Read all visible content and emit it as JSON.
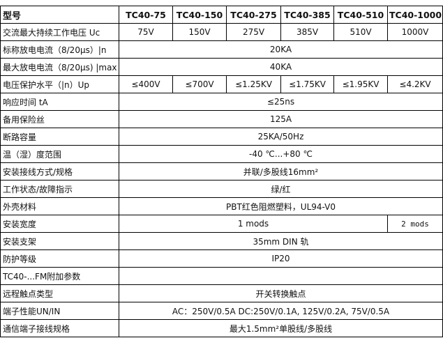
{
  "table": {
    "header": {
      "label": "型号",
      "models": [
        "TC40-75",
        "TC40-150",
        "TC40-275",
        "TC40-385",
        "TC40-510",
        "TC40-1000"
      ]
    },
    "rows": [
      {
        "label": "交流最大持续工作电压  Uc",
        "cells": [
          "75V",
          "150V",
          "275V",
          "385V",
          "510V",
          "1000V"
        ]
      },
      {
        "label": "标称放电电流（8/20μs）|n",
        "cells": [
          "20KA"
        ]
      },
      {
        "label": "最大放电电流（8/20μs) |max",
        "cells": [
          "40KA"
        ]
      },
      {
        "label": "电压保护水平（|n）Up",
        "cells": [
          "≤400V",
          "≤700V",
          "≤1.25KV",
          "≤1.75KV",
          "≤1.95KV",
          "≤4.2KV"
        ]
      },
      {
        "label": "响应时间  tA",
        "cells": [
          "≤25ns"
        ]
      },
      {
        "label": "备用保险丝",
        "cells": [
          "125A"
        ]
      },
      {
        "label": "断路容量",
        "cells": [
          "25KA/50Hz"
        ]
      },
      {
        "label": "温（湿）度范围",
        "cells": [
          "-40 ℃...+80 ℃"
        ]
      },
      {
        "label": "安装接线方式/规格",
        "cells": [
          "并联/多股线16mm²"
        ]
      },
      {
        "label": "工作状态/故障指示",
        "cells": [
          "绿/红"
        ]
      },
      {
        "label": "外壳材料",
        "cells": [
          "PBT红色阻燃塑料，UL94-V0"
        ]
      },
      {
        "label": "安装宽度",
        "cells": [
          "1 mods",
          "2 mods"
        ]
      },
      {
        "label": "安装支架",
        "cells": [
          "35mm DIN 轨"
        ]
      },
      {
        "label": "防护等级",
        "cells": [
          "IP20"
        ]
      },
      {
        "label": "TC40-...FM附加参数",
        "cells": []
      },
      {
        "label": "远程触点类型",
        "cells": [
          "开关转换触点"
        ]
      },
      {
        "label": "端子性能UN/IN",
        "cells": [
          "AC：250V/0.5A  DC:250V/0.1A,  125V/0.2A,  75V/0.5A"
        ]
      },
      {
        "label": "通信端子接线规格",
        "cells": [
          "最大1.5mm²单股线/多股线"
        ]
      }
    ]
  }
}
